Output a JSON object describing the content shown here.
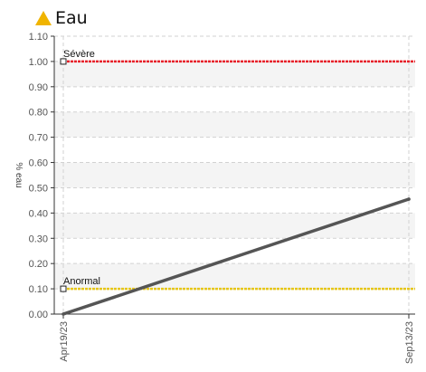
{
  "header": {
    "icon": "warning-triangle-icon",
    "icon_color": "#f0b400",
    "title": "Eau"
  },
  "chart_data": {
    "type": "line",
    "title": "Eau",
    "xlabel": "",
    "ylabel": "% eau",
    "ylim": [
      0,
      1.1
    ],
    "yticks": [
      "0.00",
      "0.10",
      "0.20",
      "0.30",
      "0.40",
      "0.50",
      "0.60",
      "0.70",
      "0.80",
      "0.90",
      "1.00",
      "1.10"
    ],
    "xticks": [
      "Apr19/23",
      "Sep13/23"
    ],
    "grid": true,
    "series": [
      {
        "color": "#555555",
        "points": [
          {
            "x": "Apr19/23",
            "y": 0.0
          },
          {
            "x": "Sep13/23",
            "y": 0.455
          }
        ]
      }
    ],
    "thresholds": [
      {
        "label": "Sévère",
        "value": 1.0,
        "color": "#e8202a"
      },
      {
        "label": "Anormal",
        "value": 0.1,
        "color": "#e6c619"
      }
    ]
  }
}
